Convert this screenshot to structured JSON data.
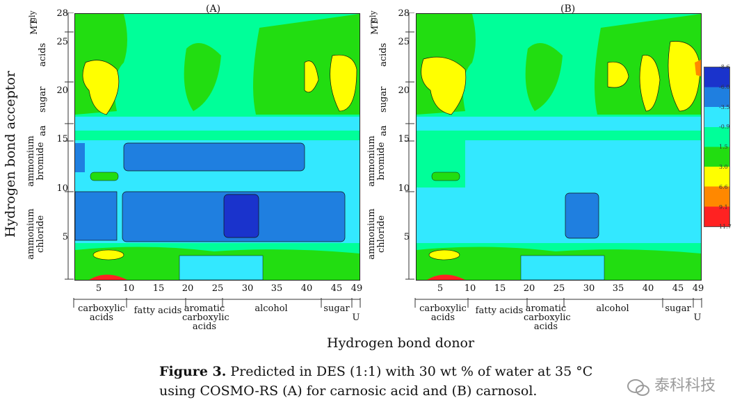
{
  "panels": [
    {
      "label": "(A)",
      "x_ticks": [
        "5",
        "10",
        "15",
        "20",
        "25",
        "30",
        "35",
        "40",
        "45",
        "49"
      ],
      "y_ticks": [
        "28",
        "25",
        "20",
        "15",
        "10",
        "5"
      ],
      "y_groups": [
        "MT",
        "gly",
        "acids",
        "sugar",
        "aa",
        "ammonium bromide",
        "ammonium chloride"
      ],
      "x_groups": [
        "carboxylic acids",
        "fatty acids",
        "aromatic carboxylic acids",
        "alcohol",
        "sugar",
        "U"
      ]
    },
    {
      "label": "(B)",
      "x_ticks": [
        "5",
        "10",
        "15",
        "20",
        "25",
        "30",
        "35",
        "40",
        "45",
        "49"
      ],
      "y_ticks": [
        "28",
        "25",
        "20",
        "15",
        "10",
        "5"
      ],
      "y_groups": [
        "MT",
        "gly",
        "acids",
        "sugar",
        "aa",
        "ammonium bromide",
        "ammonium chloride"
      ],
      "x_groups": [
        "carboxylic acids",
        "fatty acids",
        "aromatic carboxylic acids",
        "alcohol",
        "sugar",
        "U"
      ]
    }
  ],
  "axes": {
    "y_title": "Hydrogen bond acceptor",
    "x_title": "Hydrogen bond donor"
  },
  "colorbar": {
    "labels": [
      "-8.6",
      "-6.0",
      "-3.5",
      "-0.9",
      "1.5",
      "3.0",
      "6.6",
      "9.1",
      "11.7"
    ],
    "colors": [
      "#1a33cc",
      "#1f7fe0",
      "#33e8ff",
      "#00ff99",
      "#22dd11",
      "#ffff00",
      "#ff8800",
      "#ff2222"
    ]
  },
  "caption": {
    "label": "Figure 3.",
    "text_line1": "Predicted in DES (1:1) with 30 wt % of water at 35 °C",
    "text_line2": "using COSMO-RS (A) for carnosic acid and (B) carnosol."
  },
  "watermark": "泰科科技",
  "chart_data": [
    {
      "type": "heatmap",
      "title": "(A)",
      "xlabel": "Hydrogen bond donor",
      "ylabel": "Hydrogen bond acceptor",
      "xlim": [
        1,
        49
      ],
      "ylim": [
        1,
        28
      ],
      "x_ticks": [
        5,
        10,
        15,
        20,
        25,
        30,
        35,
        40,
        45,
        49
      ],
      "y_ticks": [
        5,
        10,
        15,
        20,
        25,
        28
      ],
      "regions": [
        {
          "name": "acids/sugar/MT/gly band",
          "y": [
            17.5,
            28
          ],
          "level": "green/yellow (1.5 to 3.0)"
        },
        {
          "name": "aa band",
          "y": [
            16,
            17.5
          ],
          "level": "light blue (-3.5 to -0.9)"
        },
        {
          "name": "ammonium bromide",
          "y": [
            10.5,
            15
          ],
          "level": "blue (-6.0 to -3.5)"
        },
        {
          "name": "ammonium chloride",
          "y": [
            4.5,
            10.5
          ],
          "level": "blue (-6.0), dark blue near x=30"
        },
        {
          "name": "low band",
          "y": [
            1,
            4.5
          ],
          "level": "green/yellow, red at bottom near x=5"
        }
      ]
    },
    {
      "type": "heatmap",
      "title": "(B)",
      "xlabel": "Hydrogen bond donor",
      "ylabel": "Hydrogen bond acceptor",
      "xlim": [
        1,
        49
      ],
      "ylim": [
        1,
        28
      ],
      "x_ticks": [
        5,
        10,
        15,
        20,
        25,
        30,
        35,
        40,
        45,
        49
      ],
      "y_ticks": [
        5,
        10,
        15,
        20,
        25,
        28
      ],
      "regions": [
        {
          "name": "acids/sugar/MT/gly band",
          "y": [
            17.5,
            28
          ],
          "level": "green/yellow (1.5 to 3.0), orange at x≈49"
        },
        {
          "name": "aa band",
          "y": [
            16,
            17.5
          ],
          "level": "light blue (-3.5 to -0.9)"
        },
        {
          "name": "ammonium bromide",
          "y": [
            10.5,
            15
          ],
          "level": "light blue (-3.5)"
        },
        {
          "name": "ammonium chloride",
          "y": [
            4.5,
            10.5
          ],
          "level": "light blue, blue patch near x=30"
        },
        {
          "name": "low band",
          "y": [
            1,
            4.5
          ],
          "level": "green/yellow, red at bottom near x=5"
        }
      ]
    }
  ]
}
